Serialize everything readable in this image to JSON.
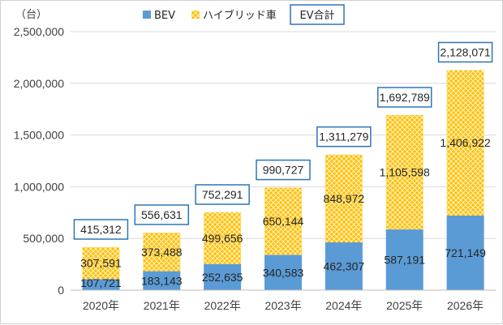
{
  "chart_data": {
    "type": "bar",
    "stacked": true,
    "title": "",
    "ylabel": "（台）",
    "xlabel": "",
    "categories": [
      "2020年",
      "2021年",
      "2022年",
      "2023年",
      "2024年",
      "2025年",
      "2026年"
    ],
    "series": [
      {
        "name": "BEV",
        "color": "#5b9bd5",
        "values": [
          107721,
          183143,
          252635,
          340583,
          462307,
          587191,
          721149
        ]
      },
      {
        "name": "ハイブリッド車",
        "color": "#ffc000",
        "values": [
          307591,
          373488,
          499656,
          650144,
          848972,
          1105598,
          1406922
        ]
      }
    ],
    "totals": {
      "name": "EV合計",
      "values": [
        415312,
        556631,
        752291,
        990727,
        1311279,
        1692789,
        2128071
      ],
      "box_color": "#2e75b6"
    },
    "ylim": [
      0,
      2500000
    ],
    "yticks": [
      0,
      500000,
      1000000,
      1500000,
      2000000,
      2500000
    ],
    "ytick_labels": [
      "0",
      "500,000",
      "1,000,000",
      "1,500,000",
      "2,000,000",
      "2,500,000"
    ],
    "grid": true,
    "legend_position": "top"
  }
}
